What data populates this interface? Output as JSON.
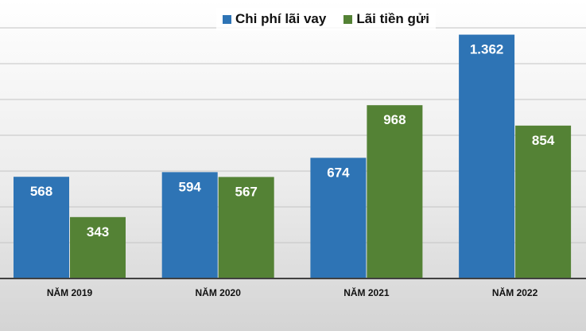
{
  "chart_data": {
    "type": "bar",
    "categories": [
      "NĂM 2019",
      "NĂM 2020",
      "NĂM 2021",
      "NĂM 2022"
    ],
    "series": [
      {
        "name": "Chi phí lãi vay",
        "values": [
          568,
          594,
          674,
          1362
        ],
        "labels": [
          "568",
          "594",
          "674",
          "1.362"
        ],
        "color": "#2e74b5"
      },
      {
        "name": "Lãi tiền gửi",
        "values": [
          343,
          567,
          968,
          854
        ],
        "labels": [
          "343",
          "567",
          "968",
          "854"
        ],
        "color": "#548235"
      }
    ],
    "title": "",
    "xlabel": "",
    "ylabel": "",
    "ylim": [
      0,
      1400
    ],
    "y_gridline_step": 200,
    "grid": true,
    "y_tick_labels_shown": false,
    "legend_position": "top"
  }
}
